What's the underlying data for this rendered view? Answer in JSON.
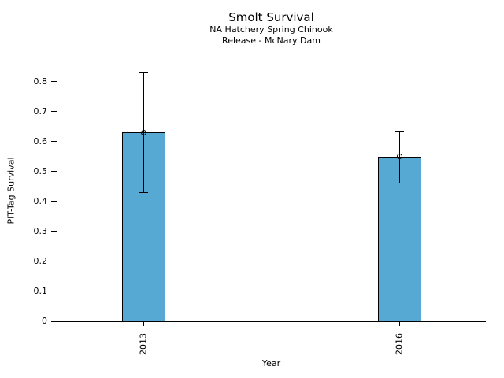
{
  "chart_data": {
    "type": "bar",
    "title": "Smolt Survival",
    "subtitle1": "NA Hatchery Spring Chinook",
    "subtitle2": "Release - McNary Dam",
    "xlabel": "Year",
    "ylabel": "PIT-Tag Survival",
    "categories": [
      "2013",
      "2016"
    ],
    "values": [
      0.63,
      0.55
    ],
    "error_low": [
      0.43,
      0.46
    ],
    "error_high": [
      0.83,
      0.635
    ],
    "y_tick_values": [
      0,
      0.1,
      0.2,
      0.3,
      0.4,
      0.5,
      0.6,
      0.7,
      0.8
    ],
    "y_tick_labels": [
      "0",
      "0.1",
      "0.2",
      "0.3",
      "0.4",
      "0.5",
      "0.6",
      "0.7",
      "0.8"
    ],
    "ylim": [
      0,
      0.875
    ],
    "grid": false,
    "legend": null,
    "marker": "open-circle",
    "bar_color": "#56a9d3",
    "bar_border_color": "#000000",
    "text_color": "#000000"
  }
}
